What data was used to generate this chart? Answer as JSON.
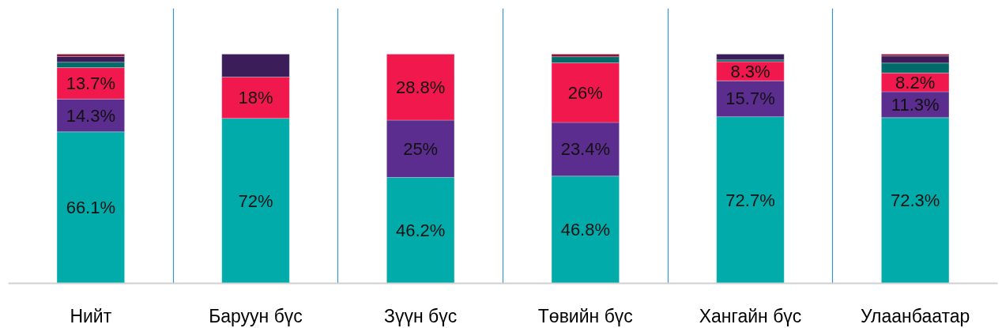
{
  "chart_data": {
    "type": "bar",
    "stacked": true,
    "grid": "x",
    "categories": [
      "Нийт",
      "Баруун бүс",
      "Зүүн бүс",
      "Төвийн бүс",
      "Хангайн бүс",
      "Улаанбаатар"
    ],
    "series": [
      {
        "color": "#00abaa",
        "values": [
          66.1,
          72,
          46.2,
          46.8,
          72.7,
          72.3
        ],
        "value_labels": [
          "66.1%",
          "72%",
          "46.2%",
          "46.8%",
          "72.7%",
          "72.3%"
        ]
      },
      {
        "color": "#5b2d8e",
        "values": [
          14.3,
          null,
          25,
          23.4,
          15.7,
          11.3
        ],
        "value_labels": [
          "14.3%",
          null,
          "25%",
          "23.4%",
          "15.7%",
          "11.3%"
        ]
      },
      {
        "color": "#f0184c",
        "values": [
          13.7,
          18,
          28.8,
          26,
          8.3,
          8.2
        ],
        "value_labels": [
          "13.7%",
          "18%",
          "28.8%",
          "26%",
          "8.3%",
          "8.2%"
        ]
      },
      {
        "color": "#006b68",
        "values": [
          2.4,
          null,
          null,
          2.7,
          0.8,
          4.3
        ]
      },
      {
        "color": "#3b1d5a",
        "values": [
          2.5,
          10,
          null,
          null,
          2.5,
          3.1
        ]
      },
      {
        "color": "#8b1333",
        "values": [
          1.0,
          null,
          null,
          1.1,
          null,
          0.8
        ]
      }
    ]
  }
}
